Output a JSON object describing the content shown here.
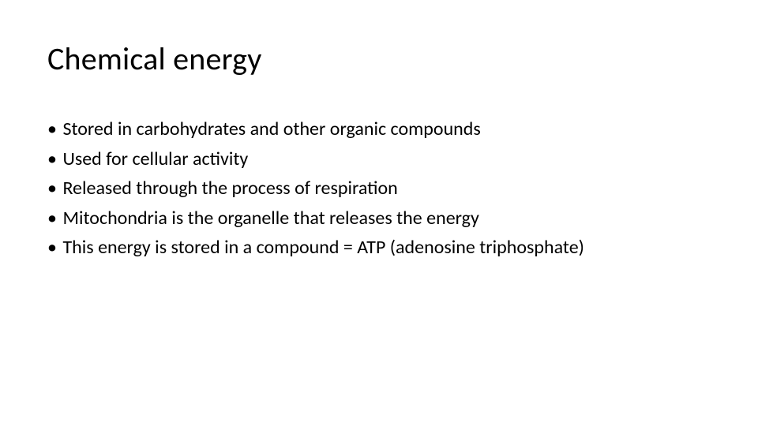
{
  "slide": {
    "title": "Chemical energy",
    "title_fontsize": 40,
    "title_color": "#000000",
    "body_fontsize": 24,
    "body_color": "#000000",
    "background_color": "#ffffff",
    "bullet_glyph": "•",
    "bullets": [
      "Stored in carbohydrates and other organic compounds",
      "Used for cellular activity",
      "Released through the process of respiration",
      "Mitochondria is the organelle that releases the energy",
      "This energy is stored in a compound = ATP (adenosine triphosphate)"
    ]
  }
}
